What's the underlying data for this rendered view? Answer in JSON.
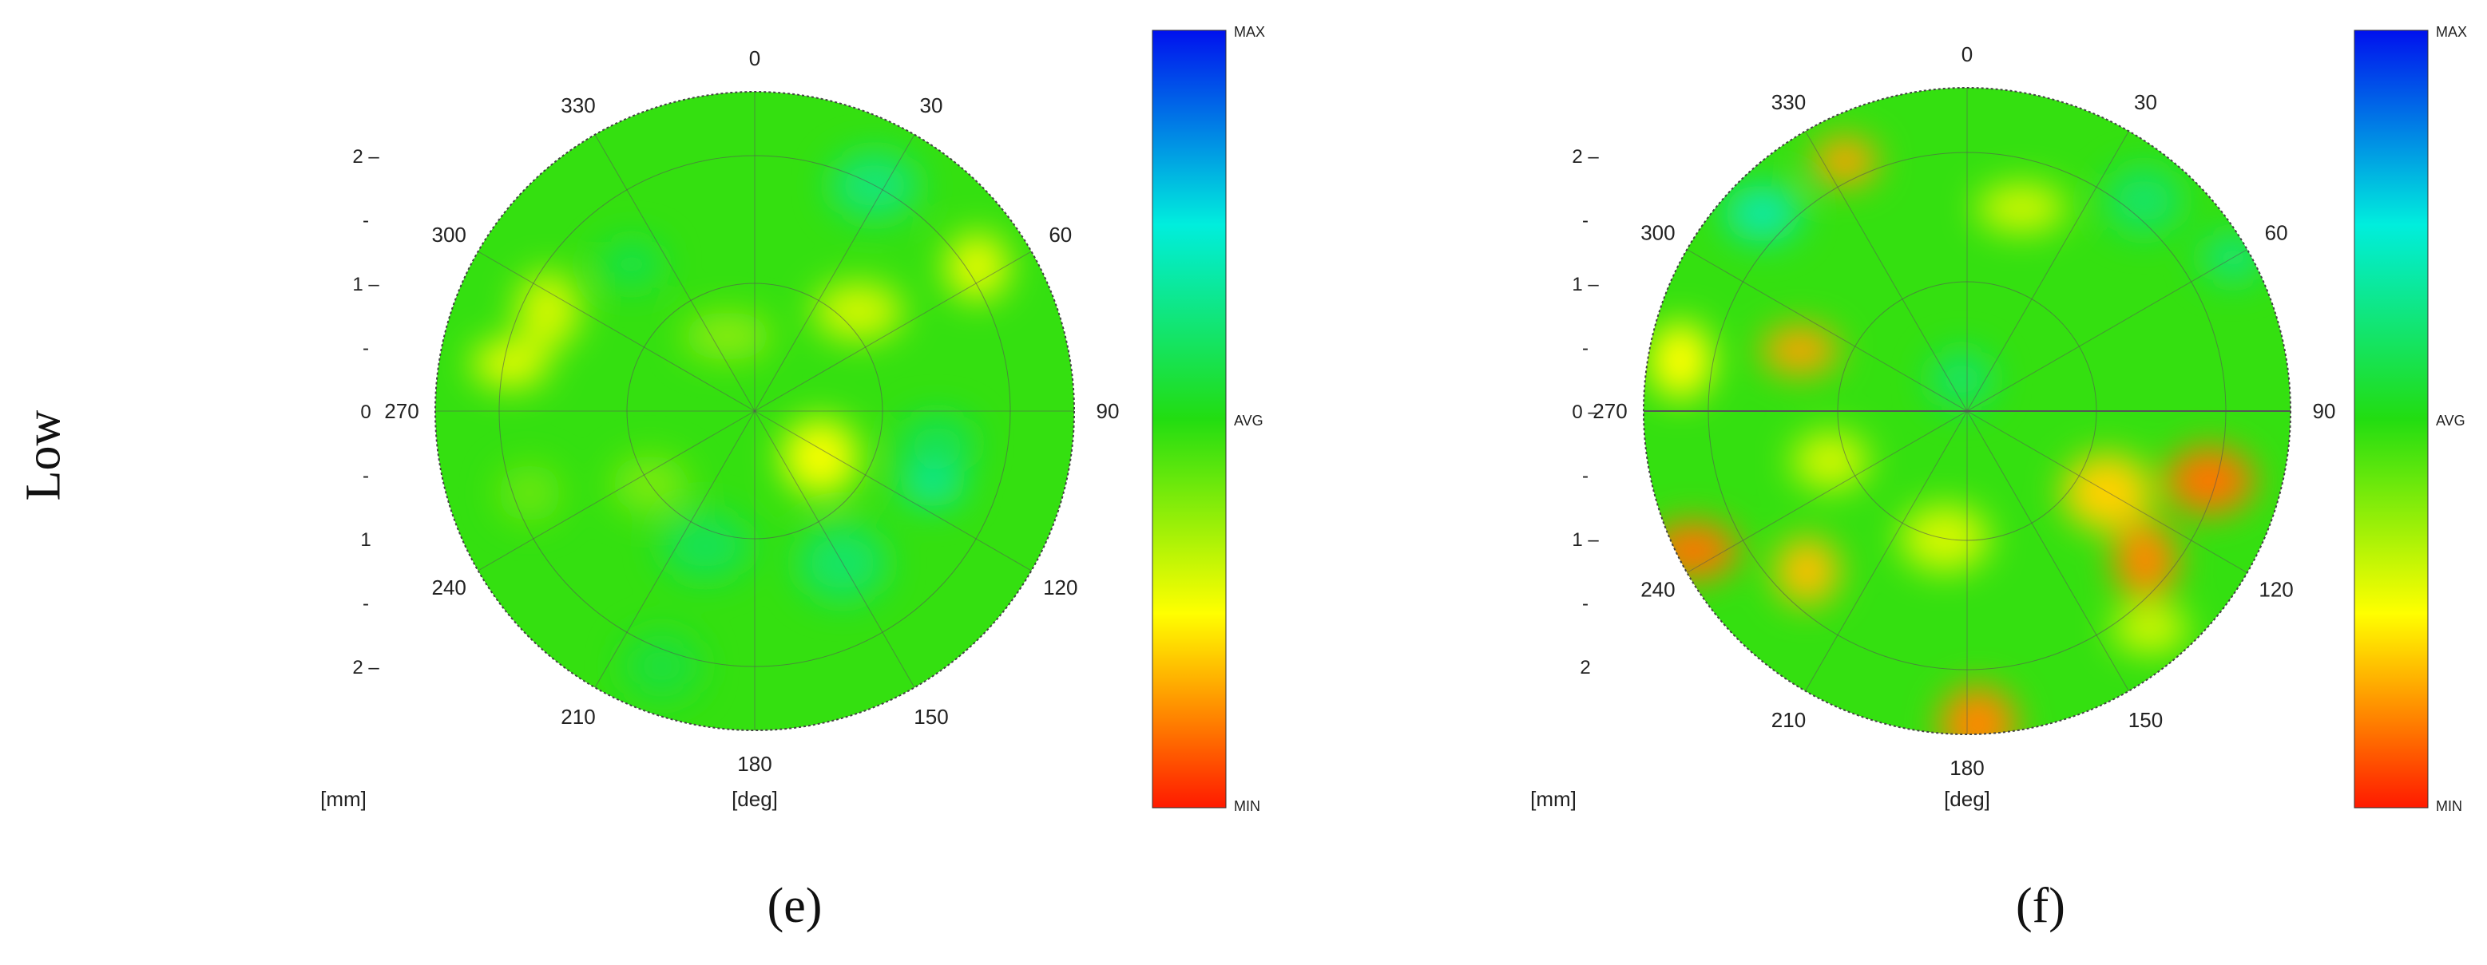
{
  "row_label": "Low",
  "colorbar": {
    "max_label": "MAX",
    "avg_label": "AVG",
    "min_label": "MIN"
  },
  "colors": {
    "min": "#ff1a00",
    "low": "#ffff00",
    "avg": "#22dd11",
    "high": "#00eedd",
    "max": "#0011ee"
  },
  "chart_data": [
    {
      "type": "heatmap",
      "subtype": "polar-contour-map",
      "panel_label": "(e)",
      "angle_unit_label": "[deg]",
      "radius_unit_label": "[mm]",
      "angle_ticks": [
        "0",
        "30",
        "60",
        "90",
        "120",
        "150",
        "180",
        "210",
        "240",
        "270",
        "300",
        "330"
      ],
      "radius_tick_labels": [
        "2 –",
        "-",
        "1 –",
        "-",
        "0",
        "-",
        "1",
        "-",
        "2 –"
      ],
      "value_scale": [
        "MIN",
        "AVG",
        "MAX"
      ],
      "spokes": "every 30 deg",
      "rings": 2,
      "features": [
        {
          "theta": 112,
          "r": 0.6,
          "level": 0.66
        },
        {
          "theta": 100,
          "r": 0.58,
          "level": 0.58
        },
        {
          "theta": 28,
          "r": 0.8,
          "level": 0.62
        },
        {
          "theta": 296,
          "r": 0.72,
          "level": 0.3
        },
        {
          "theta": 281,
          "r": 0.78,
          "level": 0.28
        },
        {
          "theta": 46,
          "r": 0.45,
          "level": 0.3
        },
        {
          "theta": 57,
          "r": 0.83,
          "level": 0.28
        },
        {
          "theta": 125,
          "r": 0.25,
          "level": 0.26
        },
        {
          "theta": 340,
          "r": 0.25,
          "level": 0.38
        },
        {
          "theta": 250,
          "r": 0.75,
          "level": 0.42
        },
        {
          "theta": 200,
          "r": 0.85,
          "level": 0.55
        },
        {
          "theta": 150,
          "r": 0.55,
          "level": 0.6
        },
        {
          "theta": 320,
          "r": 0.6,
          "level": 0.57
        },
        {
          "theta": 235,
          "r": 0.4,
          "level": 0.4
        },
        {
          "theta": 200,
          "r": 0.45,
          "level": 0.58
        }
      ]
    },
    {
      "type": "heatmap",
      "subtype": "polar-contour-map",
      "panel_label": "(f)",
      "angle_unit_label": "[deg]",
      "radius_unit_label": "[mm]",
      "angle_ticks": [
        "0",
        "30",
        "60",
        "90",
        "120",
        "150",
        "180",
        "210",
        "240",
        "270",
        "300",
        "330"
      ],
      "radius_tick_labels": [
        "2 –",
        "-",
        "1 –",
        "-",
        "0 –",
        "-",
        "1 –",
        "-",
        "2"
      ],
      "value_scale": [
        "MIN",
        "AVG",
        "MAX"
      ],
      "spokes": "every 30 deg",
      "rings": 2,
      "features": [
        {
          "theta": 334,
          "r": 0.86,
          "level": 0.15
        },
        {
          "theta": 314,
          "r": 0.88,
          "level": 0.68
        },
        {
          "theta": 106,
          "r": 0.78,
          "level": 0.1
        },
        {
          "theta": 130,
          "r": 0.72,
          "level": 0.12
        },
        {
          "theta": 290,
          "r": 0.55,
          "level": 0.15
        },
        {
          "theta": 243,
          "r": 0.95,
          "level": 0.1
        },
        {
          "theta": 225,
          "r": 0.7,
          "level": 0.18
        },
        {
          "theta": 178,
          "r": 0.97,
          "level": 0.12
        },
        {
          "theta": 15,
          "r": 0.65,
          "level": 0.3
        },
        {
          "theta": 350,
          "r": 0.1,
          "level": 0.6
        },
        {
          "theta": 40,
          "r": 0.85,
          "level": 0.6
        },
        {
          "theta": 120,
          "r": 0.5,
          "level": 0.2
        },
        {
          "theta": 60,
          "r": 0.95,
          "level": 0.62
        },
        {
          "theta": 250,
          "r": 0.45,
          "level": 0.3
        },
        {
          "theta": 190,
          "r": 0.4,
          "level": 0.3
        },
        {
          "theta": 280,
          "r": 0.9,
          "level": 0.25
        },
        {
          "theta": 140,
          "r": 0.88,
          "level": 0.3
        }
      ]
    }
  ]
}
